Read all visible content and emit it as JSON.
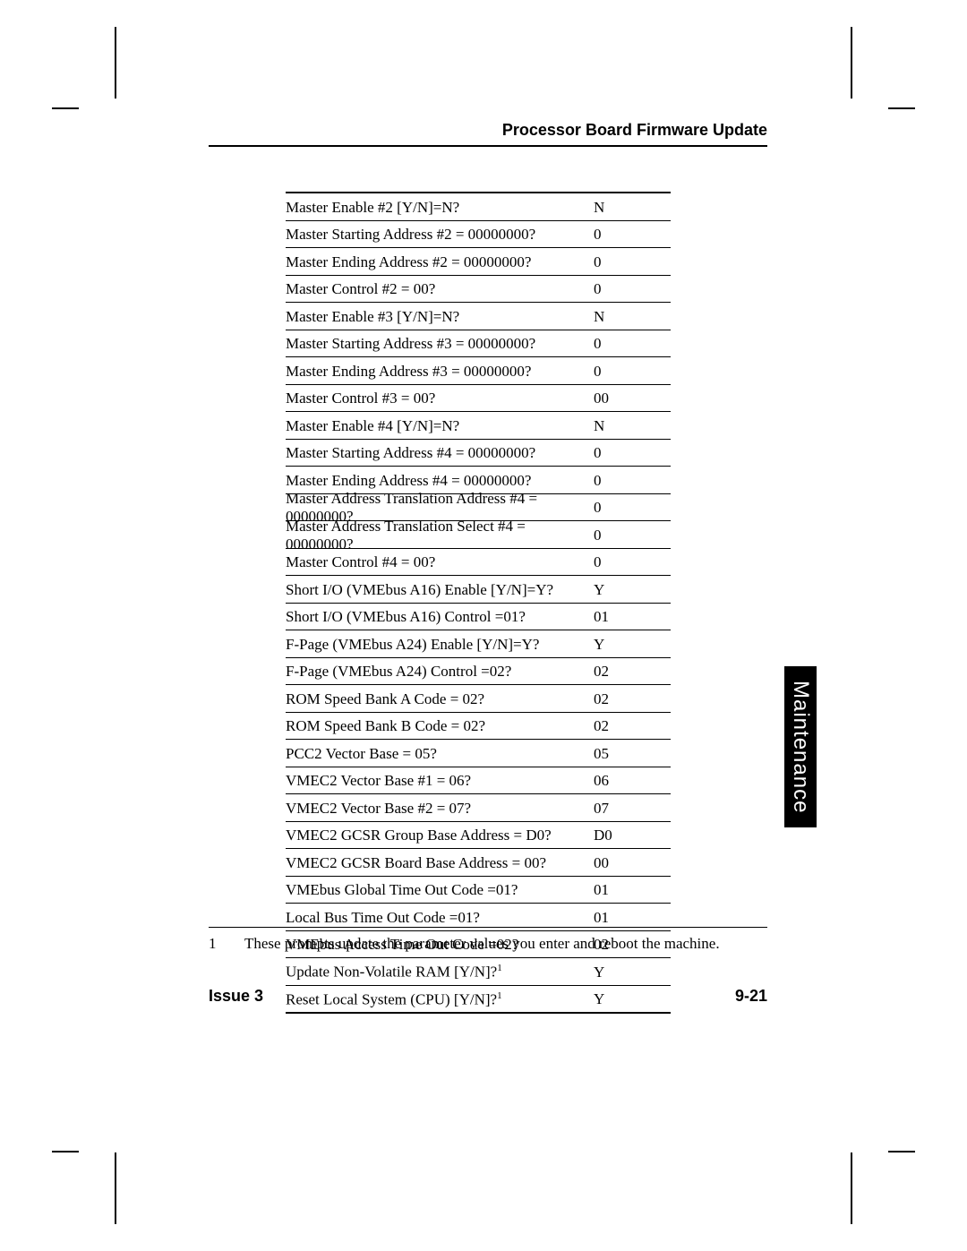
{
  "header": {
    "title": "Processor Board Firmware Update"
  },
  "table": {
    "rows": [
      {
        "prompt": "Master Enable #2 [Y/N]=N?",
        "value": "N"
      },
      {
        "prompt": "Master Starting Address #2 = 00000000?",
        "value": "0"
      },
      {
        "prompt": "Master Ending Address #2 = 00000000?",
        "value": "0"
      },
      {
        "prompt": "Master Control #2 = 00?",
        "value": "0"
      },
      {
        "prompt": "Master Enable #3 [Y/N]=N?",
        "value": "N"
      },
      {
        "prompt": "Master Starting Address #3 = 00000000?",
        "value": "0"
      },
      {
        "prompt": "Master Ending Address #3 = 00000000?",
        "value": "0"
      },
      {
        "prompt": "Master Control #3 = 00?",
        "value": "00"
      },
      {
        "prompt": "Master Enable #4 [Y/N]=N?",
        "value": "N"
      },
      {
        "prompt": "Master Starting Address #4 = 00000000?",
        "value": "0"
      },
      {
        "prompt": "Master Ending Address #4 = 00000000?",
        "value": "0"
      },
      {
        "prompt": "Master Address Translation Address #4 = 00000000?",
        "value": "0"
      },
      {
        "prompt": "Master Address Translation Select #4 = 00000000?",
        "value": "0"
      },
      {
        "prompt": "Master Control #4 = 00?",
        "value": "0"
      },
      {
        "prompt": "Short I/O (VMEbus A16) Enable [Y/N]=Y?",
        "value": "Y"
      },
      {
        "prompt": "Short I/O (VMEbus A16) Control =01?",
        "value": "01"
      },
      {
        "prompt": "F-Page (VMEbus A24) Enable [Y/N]=Y?",
        "value": "Y"
      },
      {
        "prompt": "F-Page (VMEbus A24) Control =02?",
        "value": "02"
      },
      {
        "prompt": "ROM Speed Bank A Code = 02?",
        "value": "02"
      },
      {
        "prompt": "ROM Speed Bank B Code = 02?",
        "value": "02"
      },
      {
        "prompt": "PCC2 Vector Base = 05?",
        "value": "05"
      },
      {
        "prompt": "VMEC2 Vector Base #1 = 06?",
        "value": "06"
      },
      {
        "prompt": "VMEC2 Vector Base #2 = 07?",
        "value": "07"
      },
      {
        "prompt": "VMEC2 GCSR Group Base Address = D0?",
        "value": "D0"
      },
      {
        "prompt": "VMEC2 GCSR Board Base Address = 00?",
        "value": "00"
      },
      {
        "prompt": "VMEbus Global Time Out Code =01?",
        "value": "01"
      },
      {
        "prompt": "Local Bus Time Out Code =01?",
        "value": "01"
      },
      {
        "prompt": "VMEbus Access Time Out Code =02?",
        "value": "02"
      },
      {
        "prompt": "Update Non-Volatile RAM [Y/N]?",
        "value": "Y",
        "sup": "1"
      },
      {
        "prompt": "Reset Local System (CPU) [Y/N]?",
        "value": "Y",
        "sup": "1"
      }
    ]
  },
  "footnote": {
    "num": "1",
    "text": "These prompts update the parameter values you enter and reboot the machine."
  },
  "footer": {
    "left": "Issue 3",
    "right": "9-21"
  },
  "sideTab": "Maintenance"
}
